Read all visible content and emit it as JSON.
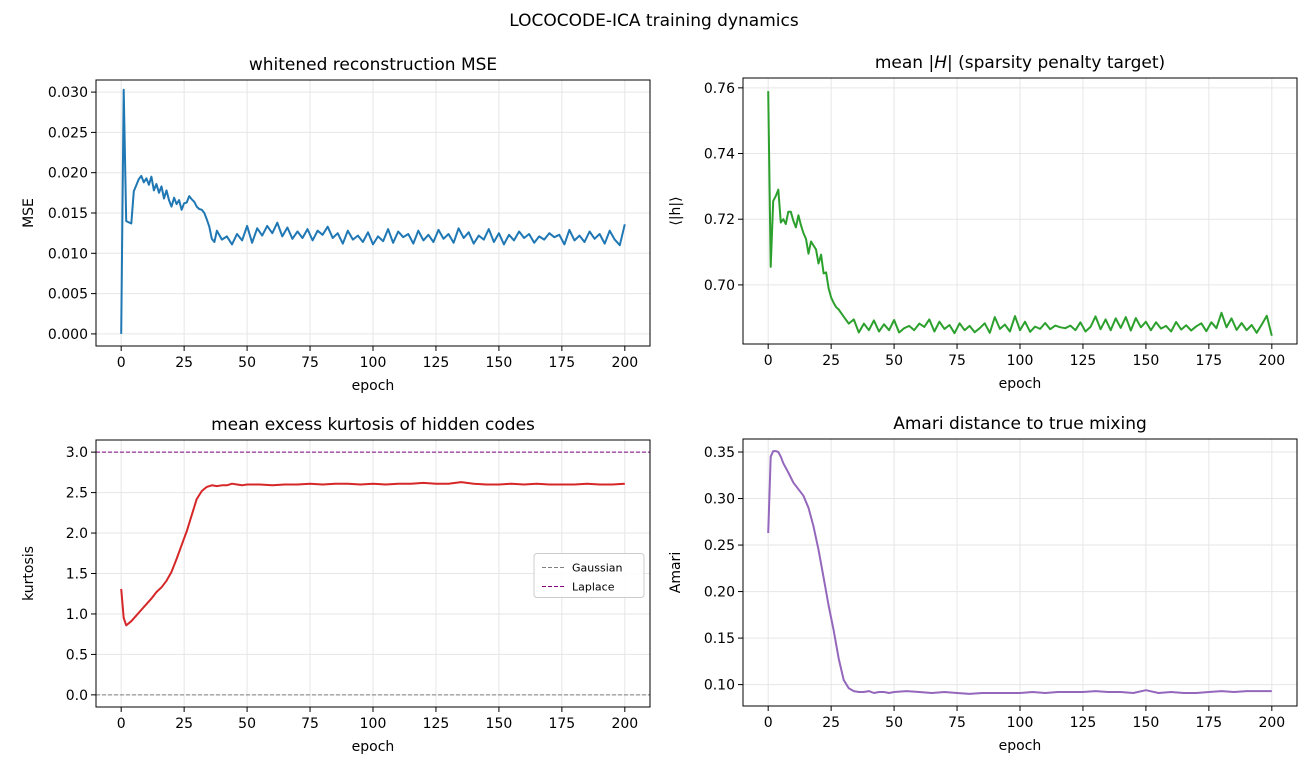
{
  "figure": {
    "suptitle": "LOCOCODE-ICA training dynamics"
  },
  "chart_data": [
    {
      "type": "line",
      "title": "whitened reconstruction MSE",
      "xlabel": "epoch",
      "ylabel": "MSE",
      "xlim": [
        -10,
        210
      ],
      "ylim": [
        -0.0015,
        0.0315
      ],
      "xticks": [
        0,
        25,
        50,
        75,
        100,
        125,
        150,
        175,
        200
      ],
      "yticks": [
        0.0,
        0.005,
        0.01,
        0.015,
        0.02,
        0.025,
        0.03
      ],
      "ytick_labels": [
        "0.000",
        "0.005",
        "0.010",
        "0.015",
        "0.020",
        "0.025",
        "0.030"
      ],
      "grid": true,
      "legend": null,
      "series": [
        {
          "color": "#1f77b4",
          "x": [
            0,
            1,
            2,
            4,
            5,
            7,
            8,
            9,
            10,
            11,
            12,
            13,
            14,
            15,
            16,
            17,
            18,
            19,
            20,
            21,
            22,
            23,
            24,
            25,
            26,
            27,
            28,
            29,
            30,
            31,
            32,
            33,
            34,
            35,
            36,
            37,
            38,
            40,
            42,
            44,
            46,
            48,
            50,
            52,
            54,
            56,
            58,
            60,
            62,
            64,
            66,
            68,
            70,
            72,
            74,
            76,
            78,
            80,
            82,
            84,
            86,
            88,
            90,
            92,
            94,
            96,
            98,
            100,
            102,
            104,
            106,
            108,
            110,
            112,
            114,
            116,
            118,
            120,
            122,
            124,
            126,
            128,
            130,
            132,
            134,
            136,
            138,
            140,
            142,
            144,
            146,
            148,
            150,
            152,
            154,
            156,
            158,
            160,
            162,
            164,
            166,
            168,
            170,
            172,
            174,
            176,
            178,
            180,
            182,
            184,
            186,
            188,
            190,
            192,
            194,
            196,
            198,
            200
          ],
          "y": [
            0.0,
            0.0303,
            0.014,
            0.0137,
            0.0177,
            0.0192,
            0.0196,
            0.0188,
            0.0193,
            0.0185,
            0.0195,
            0.0178,
            0.0186,
            0.0175,
            0.0183,
            0.0168,
            0.0178,
            0.0166,
            0.0158,
            0.0169,
            0.0161,
            0.0166,
            0.0154,
            0.0162,
            0.0163,
            0.0171,
            0.0167,
            0.0164,
            0.0158,
            0.0155,
            0.0154,
            0.015,
            0.0142,
            0.0133,
            0.0118,
            0.0114,
            0.0128,
            0.0117,
            0.0121,
            0.0111,
            0.0124,
            0.0116,
            0.0134,
            0.0113,
            0.0131,
            0.0122,
            0.0134,
            0.0125,
            0.0138,
            0.0121,
            0.0132,
            0.0118,
            0.0127,
            0.0119,
            0.013,
            0.0116,
            0.0128,
            0.0123,
            0.0133,
            0.0119,
            0.0125,
            0.0112,
            0.0128,
            0.0117,
            0.0122,
            0.0114,
            0.0126,
            0.0111,
            0.0121,
            0.0115,
            0.013,
            0.0113,
            0.0127,
            0.012,
            0.0124,
            0.0112,
            0.0128,
            0.0116,
            0.0123,
            0.0114,
            0.0129,
            0.0118,
            0.0124,
            0.0113,
            0.0131,
            0.0119,
            0.0126,
            0.0112,
            0.0122,
            0.0117,
            0.013,
            0.0114,
            0.0125,
            0.0111,
            0.0123,
            0.0116,
            0.0127,
            0.0119,
            0.0124,
            0.0113,
            0.0121,
            0.0117,
            0.0125,
            0.012,
            0.0123,
            0.0111,
            0.0129,
            0.0116,
            0.0122,
            0.0114,
            0.0127,
            0.0118,
            0.0124,
            0.0112,
            0.0128,
            0.0117,
            0.011,
            0.0136
          ]
        }
      ]
    },
    {
      "type": "line",
      "title": "mean |H| (sparsity penalty target)",
      "title_plain": "mean ",
      "title_math": "|H|",
      "title_rest": " (sparsity penalty target)",
      "xlabel": "epoch",
      "ylabel": "⟨|h|⟩",
      "xlim": [
        -10,
        210
      ],
      "ylim": [
        0.682,
        0.763
      ],
      "xticks": [
        0,
        25,
        50,
        75,
        100,
        125,
        150,
        175,
        200
      ],
      "yticks": [
        0.7,
        0.72,
        0.74,
        0.76
      ],
      "ytick_labels": [
        "0.70",
        "0.72",
        "0.74",
        "0.76"
      ],
      "grid": true,
      "legend": null,
      "series": [
        {
          "color": "#2ca02c",
          "x": [
            0,
            1,
            2,
            3,
            4,
            5,
            6,
            7,
            8,
            9,
            10,
            11,
            12,
            13,
            14,
            15,
            16,
            17,
            18,
            19,
            20,
            21,
            22,
            23,
            24,
            25,
            26,
            27,
            28,
            30,
            32,
            34,
            36,
            38,
            40,
            42,
            44,
            46,
            48,
            50,
            52,
            54,
            56,
            58,
            60,
            62,
            64,
            66,
            68,
            70,
            72,
            74,
            76,
            78,
            80,
            82,
            84,
            86,
            88,
            90,
            92,
            94,
            96,
            98,
            100,
            102,
            104,
            106,
            108,
            110,
            112,
            114,
            116,
            118,
            120,
            122,
            124,
            126,
            128,
            130,
            132,
            134,
            136,
            138,
            140,
            142,
            144,
            146,
            148,
            150,
            152,
            154,
            156,
            158,
            160,
            162,
            164,
            166,
            168,
            170,
            172,
            174,
            176,
            178,
            180,
            182,
            184,
            186,
            188,
            190,
            192,
            194,
            196,
            198,
            200
          ],
          "y": [
            0.759,
            0.7055,
            0.7255,
            0.727,
            0.729,
            0.719,
            0.72,
            0.7185,
            0.7223,
            0.7223,
            0.7195,
            0.7175,
            0.7212,
            0.7182,
            0.7158,
            0.714,
            0.7095,
            0.7132,
            0.712,
            0.7108,
            0.7065,
            0.7092,
            0.7035,
            0.7038,
            0.699,
            0.6962,
            0.6945,
            0.6932,
            0.6925,
            0.6903,
            0.6882,
            0.6895,
            0.6855,
            0.6882,
            0.6862,
            0.6892,
            0.6858,
            0.688,
            0.6862,
            0.6893,
            0.6855,
            0.6868,
            0.6875,
            0.6862,
            0.6882,
            0.6872,
            0.6895,
            0.6858,
            0.6888,
            0.6866,
            0.6878,
            0.6853,
            0.6883,
            0.6862,
            0.6875,
            0.6856,
            0.6868,
            0.6883,
            0.6854,
            0.6902,
            0.6866,
            0.6879,
            0.6858,
            0.6905,
            0.6862,
            0.6888,
            0.6857,
            0.6873,
            0.6866,
            0.6884,
            0.6865,
            0.6876,
            0.6871,
            0.6868,
            0.6876,
            0.6862,
            0.6886,
            0.6858,
            0.6872,
            0.6904,
            0.6865,
            0.6895,
            0.6862,
            0.6898,
            0.6869,
            0.6902,
            0.6861,
            0.6899,
            0.6871,
            0.6888,
            0.6862,
            0.6886,
            0.6867,
            0.6875,
            0.6858,
            0.6887,
            0.6864,
            0.6877,
            0.6861,
            0.6874,
            0.6883,
            0.6859,
            0.6886,
            0.6868,
            0.6915,
            0.6871,
            0.6898,
            0.6863,
            0.6884,
            0.6862,
            0.6878,
            0.6854,
            0.6879,
            0.6906,
            0.6845
          ]
        }
      ]
    },
    {
      "type": "line",
      "title": "mean excess kurtosis of hidden codes",
      "xlabel": "epoch",
      "ylabel": "kurtosis",
      "xlim": [
        -10,
        210
      ],
      "ylim": [
        -0.15,
        3.15
      ],
      "xticks": [
        0,
        25,
        50,
        75,
        100,
        125,
        150,
        175,
        200
      ],
      "yticks": [
        0.0,
        0.5,
        1.0,
        1.5,
        2.0,
        2.5,
        3.0
      ],
      "ytick_labels": [
        "0.0",
        "0.5",
        "1.0",
        "1.5",
        "2.0",
        "2.5",
        "3.0"
      ],
      "grid": true,
      "legend": {
        "placement": "center-right",
        "entries": [
          "Gaussian",
          "Laplace"
        ]
      },
      "hlines": [
        {
          "name": "Gaussian",
          "y": 0.0,
          "color": "#808080",
          "style": "dashed"
        },
        {
          "name": "Laplace",
          "y": 3.0,
          "color": "#800080",
          "style": "dashed"
        }
      ],
      "series": [
        {
          "color": "#d62728",
          "x": [
            0,
            1,
            2,
            4,
            6,
            8,
            10,
            12,
            14,
            16,
            18,
            20,
            22,
            24,
            26,
            28,
            30,
            32,
            34,
            36,
            38,
            40,
            42,
            44,
            46,
            48,
            50,
            55,
            60,
            65,
            70,
            75,
            80,
            85,
            90,
            95,
            100,
            105,
            110,
            115,
            120,
            125,
            130,
            135,
            140,
            145,
            150,
            155,
            160,
            165,
            170,
            175,
            180,
            185,
            190,
            195,
            200
          ],
          "y": [
            1.31,
            0.95,
            0.86,
            0.91,
            0.98,
            1.05,
            1.12,
            1.19,
            1.27,
            1.33,
            1.41,
            1.52,
            1.68,
            1.85,
            2.02,
            2.22,
            2.42,
            2.52,
            2.57,
            2.59,
            2.58,
            2.59,
            2.59,
            2.61,
            2.6,
            2.59,
            2.6,
            2.6,
            2.59,
            2.6,
            2.6,
            2.61,
            2.6,
            2.61,
            2.61,
            2.6,
            2.61,
            2.6,
            2.61,
            2.61,
            2.62,
            2.61,
            2.61,
            2.63,
            2.61,
            2.6,
            2.6,
            2.61,
            2.6,
            2.61,
            2.6,
            2.6,
            2.6,
            2.61,
            2.6,
            2.6,
            2.61
          ]
        }
      ]
    },
    {
      "type": "line",
      "title": "Amari distance to true mixing",
      "xlabel": "epoch",
      "ylabel": "Amari",
      "xlim": [
        -10,
        210
      ],
      "ylim": [
        0.077,
        0.364
      ],
      "xticks": [
        0,
        25,
        50,
        75,
        100,
        125,
        150,
        175,
        200
      ],
      "yticks": [
        0.1,
        0.15,
        0.2,
        0.25,
        0.3,
        0.35
      ],
      "ytick_labels": [
        "0.10",
        "0.15",
        "0.20",
        "0.25",
        "0.30",
        "0.35"
      ],
      "grid": true,
      "legend": null,
      "series": [
        {
          "color": "#9467bd",
          "x": [
            0,
            1,
            2,
            3,
            4,
            5,
            6,
            8,
            10,
            12,
            14,
            16,
            18,
            20,
            22,
            24,
            26,
            28,
            30,
            32,
            34,
            36,
            38,
            40,
            42,
            44,
            46,
            48,
            50,
            55,
            60,
            65,
            70,
            75,
            80,
            85,
            90,
            95,
            100,
            105,
            110,
            115,
            120,
            125,
            130,
            135,
            140,
            145,
            150,
            155,
            160,
            165,
            170,
            175,
            180,
            185,
            190,
            195,
            200
          ],
          "y": [
            0.263,
            0.345,
            0.351,
            0.351,
            0.35,
            0.345,
            0.338,
            0.328,
            0.317,
            0.31,
            0.303,
            0.29,
            0.27,
            0.245,
            0.215,
            0.185,
            0.158,
            0.128,
            0.105,
            0.096,
            0.093,
            0.092,
            0.092,
            0.093,
            0.091,
            0.092,
            0.092,
            0.091,
            0.092,
            0.093,
            0.092,
            0.091,
            0.092,
            0.091,
            0.09,
            0.091,
            0.091,
            0.091,
            0.091,
            0.092,
            0.091,
            0.092,
            0.092,
            0.092,
            0.093,
            0.092,
            0.092,
            0.091,
            0.094,
            0.091,
            0.092,
            0.091,
            0.091,
            0.092,
            0.093,
            0.092,
            0.093,
            0.093,
            0.093
          ]
        }
      ]
    }
  ]
}
